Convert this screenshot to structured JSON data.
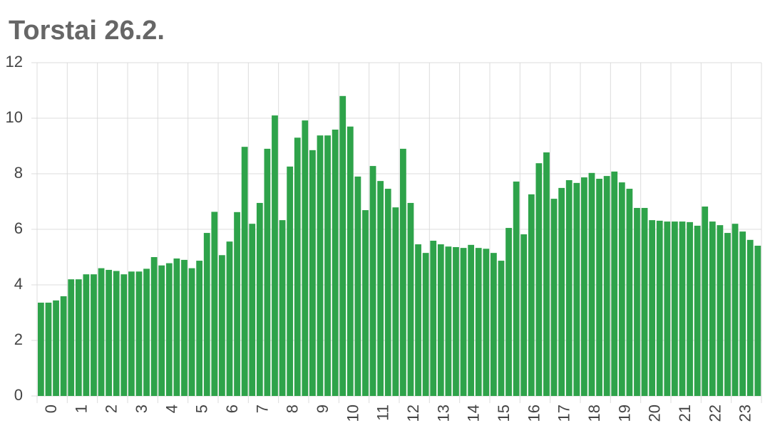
{
  "chart_data": {
    "type": "bar",
    "title": "Torstai 26.2.",
    "x": [
      0,
      0.25,
      0.5,
      0.75,
      1,
      1.25,
      1.5,
      1.75,
      2,
      2.25,
      2.5,
      2.75,
      3,
      3.25,
      3.5,
      3.75,
      4,
      4.25,
      4.5,
      4.75,
      5,
      5.25,
      5.5,
      5.75,
      6,
      6.25,
      6.5,
      6.75,
      7,
      7.25,
      7.5,
      7.75,
      8,
      8.25,
      8.5,
      8.75,
      9,
      9.25,
      9.5,
      9.75,
      10,
      10.25,
      10.5,
      10.75,
      11,
      11.25,
      11.5,
      11.75,
      12,
      12.25,
      12.5,
      12.75,
      13,
      13.25,
      13.5,
      13.75,
      14,
      14.25,
      14.5,
      14.75,
      15,
      15.25,
      15.5,
      15.75,
      16,
      16.25,
      16.5,
      16.75,
      17,
      17.25,
      17.5,
      17.75,
      18,
      18.25,
      18.5,
      18.75,
      19,
      19.25,
      19.5,
      19.75,
      20,
      20.25,
      20.5,
      20.75,
      21,
      21.25,
      21.5,
      21.75,
      22,
      22.25,
      22.5,
      22.75,
      23,
      23.25,
      23.5,
      23.75
    ],
    "values": [
      3.36,
      3.36,
      3.44,
      3.59,
      4.2,
      4.2,
      4.38,
      4.38,
      4.6,
      4.54,
      4.5,
      4.38,
      4.48,
      4.48,
      4.58,
      5.0,
      4.7,
      4.78,
      4.95,
      4.9,
      4.6,
      4.87,
      5.87,
      6.63,
      5.07,
      5.56,
      6.62,
      8.97,
      6.2,
      6.95,
      8.9,
      10.1,
      6.33,
      8.26,
      9.3,
      9.92,
      8.85,
      9.38,
      9.38,
      9.59,
      10.8,
      9.7,
      7.9,
      6.69,
      8.28,
      7.74,
      7.46,
      6.79,
      8.9,
      6.95,
      5.46,
      5.15,
      5.59,
      5.46,
      5.38,
      5.36,
      5.33,
      5.44,
      5.33,
      5.3,
      5.15,
      4.87,
      6.05,
      7.72,
      5.82,
      7.26,
      8.38,
      8.77,
      7.1,
      7.49,
      7.77,
      7.67,
      7.87,
      8.03,
      7.82,
      7.92,
      8.08,
      7.69,
      7.46,
      6.77,
      6.77,
      6.33,
      6.31,
      6.28,
      6.28,
      6.28,
      6.26,
      6.13,
      6.82,
      6.28,
      6.15,
      5.87,
      6.2,
      5.92,
      5.62,
      5.41
    ],
    "color": "#2ea34a",
    "xlim": [
      0,
      24
    ],
    "xticks": [
      0,
      1,
      2,
      3,
      4,
      5,
      6,
      7,
      8,
      9,
      10,
      11,
      12,
      13,
      14,
      15,
      16,
      17,
      18,
      19,
      20,
      21,
      22,
      23
    ],
    "ylim": [
      0,
      12
    ],
    "yticks": [
      0,
      2,
      4,
      6,
      8,
      10,
      12
    ],
    "grid": true
  }
}
